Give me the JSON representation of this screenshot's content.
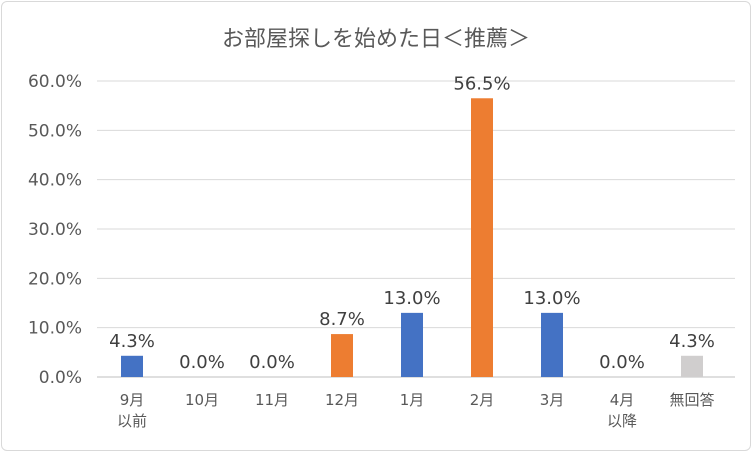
{
  "chart_data": {
    "type": "bar",
    "title": "お部屋探しを始めた日＜推薦＞",
    "categories": [
      [
        "9月",
        "以前"
      ],
      [
        "10月"
      ],
      [
        "11月"
      ],
      [
        "12月"
      ],
      [
        "1月"
      ],
      [
        "2月"
      ],
      [
        "3月"
      ],
      [
        "4月",
        "以降"
      ],
      [
        "無回答"
      ]
    ],
    "values": [
      4.3,
      0.0,
      0.0,
      8.7,
      13.0,
      56.5,
      13.0,
      0.0,
      4.3
    ],
    "data_labels": [
      "4.3%",
      "0.0%",
      "0.0%",
      "8.7%",
      "13.0%",
      "56.5%",
      "13.0%",
      "0.0%",
      "4.3%"
    ],
    "bar_colors": [
      "#4472C4",
      "#4472C4",
      "#4472C4",
      "#ED7D31",
      "#4472C4",
      "#ED7D31",
      "#4472C4",
      "#4472C4",
      "#D0CECE"
    ],
    "ylim": [
      0,
      60
    ],
    "yticks": [
      0,
      10,
      20,
      30,
      40,
      50,
      60
    ],
    "ytick_labels": [
      "0.0%",
      "10.0%",
      "20.0%",
      "30.0%",
      "40.0%",
      "50.0%",
      "60.0%"
    ],
    "xlabel": "",
    "ylabel": "",
    "grid": true,
    "legend": "none"
  }
}
